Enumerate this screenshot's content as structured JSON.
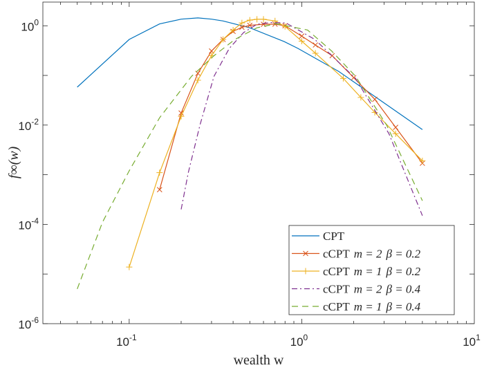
{
  "chart_data": {
    "type": "line",
    "xlabel": "wealth w",
    "ylabel": "f∞(w)",
    "xscale": "log",
    "yscale": "log",
    "xlim": [
      0.0316,
      10
    ],
    "ylim": [
      1e-06,
      3
    ],
    "grid": false,
    "legend_position": "bottom-right",
    "x_ticks": [
      {
        "base": "10",
        "exp": "-1",
        "value": 0.1
      },
      {
        "base": "10",
        "exp": "0",
        "value": 1
      },
      {
        "base": "10",
        "exp": "1",
        "value": 10
      }
    ],
    "y_ticks": [
      {
        "base": "10",
        "exp": "0",
        "value": 1
      },
      {
        "base": "10",
        "exp": "-2",
        "value": 0.01
      },
      {
        "base": "10",
        "exp": "-4",
        "value": 0.0001
      },
      {
        "base": "10",
        "exp": "-6",
        "value": 1e-06
      }
    ],
    "series": [
      {
        "name": "CPT",
        "color": "#0072BD",
        "style": "solid",
        "marker": "none",
        "x": [
          0.05,
          0.1,
          0.15,
          0.2,
          0.25,
          0.3,
          0.35,
          0.5,
          0.79,
          0.95,
          1.64,
          2.8,
          5
        ],
        "y": [
          0.058,
          0.53,
          1.09,
          1.36,
          1.44,
          1.36,
          1.25,
          0.91,
          0.48,
          0.35,
          0.12,
          0.033,
          0.0081
        ]
      },
      {
        "name": "cCPT m = 2 β = 0.2",
        "color": "#D95319",
        "style": "solid",
        "marker": "x",
        "x": [
          0.15,
          0.2,
          0.25,
          0.3,
          0.35,
          0.4,
          0.45,
          0.5,
          0.6,
          0.7,
          0.8,
          1.0,
          1.2,
          1.5,
          2.0,
          2.65,
          3.5,
          5
        ],
        "y": [
          0.0005,
          0.0175,
          0.11,
          0.31,
          0.53,
          0.77,
          0.93,
          1.02,
          1.07,
          1.08,
          1.0,
          0.62,
          0.41,
          0.25,
          0.09,
          0.033,
          0.009,
          0.0017
        ]
      },
      {
        "name": "cCPT m = 1 β = 0.2",
        "color": "#EDB120",
        "style": "solid",
        "marker": "+",
        "x": [
          0.1,
          0.15,
          0.2,
          0.25,
          0.3,
          0.35,
          0.4,
          0.45,
          0.5,
          0.55,
          0.6,
          0.7,
          0.8,
          1.0,
          1.2,
          1.74,
          2.2,
          2.65,
          3.5,
          5
        ],
        "y": [
          1.38e-05,
          0.0011,
          0.015,
          0.08,
          0.25,
          0.53,
          0.82,
          1.14,
          1.3,
          1.35,
          1.35,
          1.25,
          0.97,
          0.49,
          0.28,
          0.087,
          0.036,
          0.018,
          0.0067,
          0.0019
        ]
      },
      {
        "name": "cCPT m = 2 β = 0.4",
        "color": "#7E2F8E",
        "style": "dashdot",
        "marker": "none",
        "x": [
          0.2,
          0.22,
          0.257,
          0.31,
          0.38,
          0.46,
          0.55,
          0.66,
          0.81,
          1.19,
          2.05,
          3.2,
          5
        ],
        "y": [
          0.0002,
          0.0011,
          0.01,
          0.096,
          0.35,
          0.73,
          1.07,
          1.16,
          1.14,
          0.53,
          0.087,
          0.0067,
          0.00015
        ]
      },
      {
        "name": "cCPT m = 1 β = 0.4",
        "color": "#77AC30",
        "style": "dashed",
        "marker": "none",
        "x": [
          0.05,
          0.07,
          0.1,
          0.15,
          0.23,
          0.31,
          0.41,
          0.55,
          0.71,
          1.08,
          1.49,
          2.05,
          3.1,
          5
        ],
        "y": [
          5e-06,
          0.00011,
          0.0012,
          0.014,
          0.096,
          0.25,
          0.53,
          0.91,
          1.1,
          0.82,
          0.31,
          0.096,
          0.01,
          0.0003
        ]
      }
    ],
    "legend": [
      {
        "prefix": "CPT",
        "m": "",
        "beta": ""
      },
      {
        "prefix": "cCPT",
        "m": "m = 2",
        "beta": "β = 0.2"
      },
      {
        "prefix": "cCPT",
        "m": "m = 1",
        "beta": "β = 0.2"
      },
      {
        "prefix": "cCPT",
        "m": "m = 2",
        "beta": "β = 0.4"
      },
      {
        "prefix": "cCPT",
        "m": "m = 1",
        "beta": "β = 0.4"
      }
    ]
  }
}
